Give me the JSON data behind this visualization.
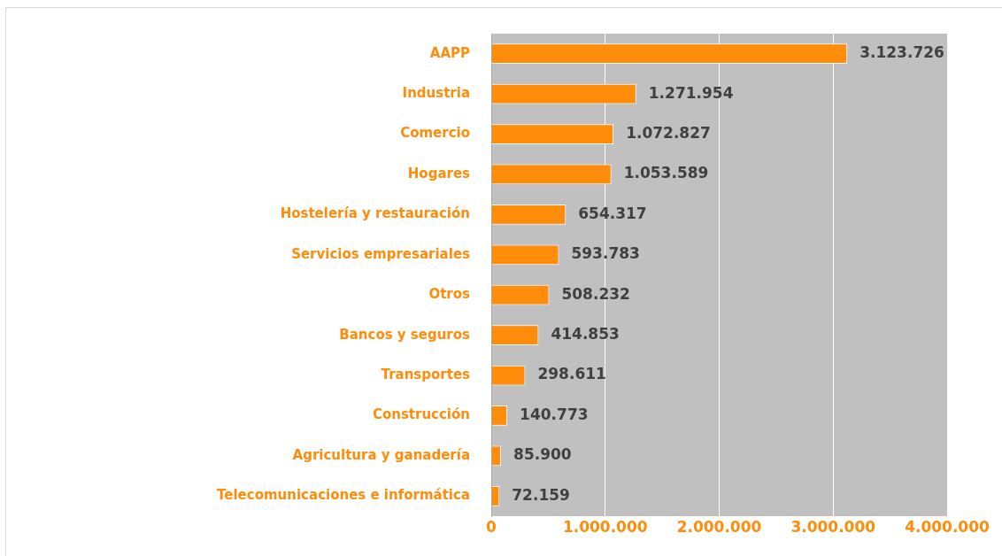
{
  "chart_data": {
    "type": "bar",
    "orientation": "horizontal",
    "categories": [
      "AAPP",
      "Industria",
      "Comercio",
      "Hogares",
      "Hostelería y restauración",
      "Servicios empresariales",
      "Otros",
      "Bancos y seguros",
      "Transportes",
      "Construcción",
      "Agricultura y ganadería",
      "Telecomunicaciones e informática"
    ],
    "values": [
      3123726,
      1271954,
      1072827,
      1053589,
      654317,
      593783,
      508232,
      414853,
      298611,
      140773,
      85900,
      72159
    ],
    "value_labels": [
      "3.123.726",
      "1.271.954",
      "1.072.827",
      "1.053.589",
      "654.317",
      "593.783",
      "508.232",
      "414.853",
      "298.611",
      "140.773",
      "85.900",
      "72.159"
    ],
    "color": "#ff8c0a",
    "xlim": [
      0,
      4000000
    ],
    "xticks": [
      {
        "value": 0,
        "label": "0"
      },
      {
        "value": 1000000,
        "label": "1.000.000"
      },
      {
        "value": 2000000,
        "label": "2.000.000"
      },
      {
        "value": 3000000,
        "label": "3.000.000"
      },
      {
        "value": 4000000,
        "label": "4.000.000"
      }
    ],
    "grid": "x",
    "legend": false
  }
}
